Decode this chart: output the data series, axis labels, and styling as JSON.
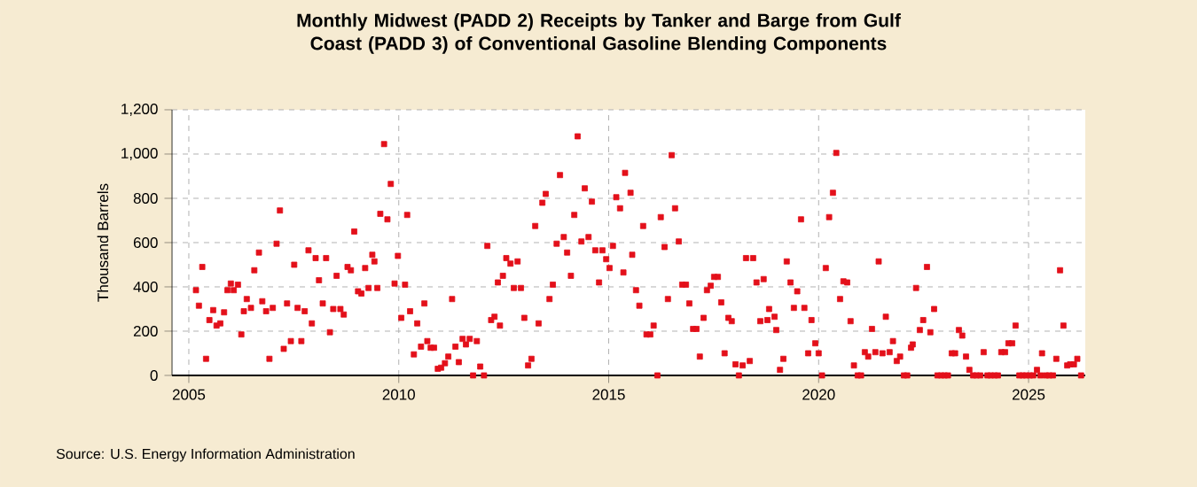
{
  "chart_data": {
    "type": "scatter",
    "title": "Monthly Midwest (PADD 2) Receipts by Tanker and Barge from Gulf Coast (PADD 3) of Conventional Gasoline Blending Components",
    "ylabel": "Thousand Barrels",
    "x": [
      2005.17,
      2005.24,
      2005.32,
      2005.41,
      2005.49,
      2005.58,
      2005.66,
      2005.75,
      2005.84,
      2005.92,
      2006.0,
      2006.07,
      2006.17,
      2006.25,
      2006.31,
      2006.38,
      2006.48,
      2006.56,
      2006.67,
      2006.75,
      2006.84,
      2006.92,
      2007.0,
      2007.09,
      2007.17,
      2007.26,
      2007.34,
      2007.43,
      2007.51,
      2007.59,
      2007.68,
      2007.76,
      2007.85,
      2007.93,
      2008.02,
      2008.1,
      2008.19,
      2008.27,
      2008.36,
      2008.44,
      2008.52,
      2008.61,
      2008.69,
      2008.78,
      2008.86,
      2008.94,
      2009.03,
      2009.11,
      2009.2,
      2009.28,
      2009.37,
      2009.42,
      2009.49,
      2009.56,
      2009.65,
      2009.73,
      2009.81,
      2009.9,
      2009.98,
      2010.06,
      2010.15,
      2010.2,
      2010.27,
      2010.36,
      2010.44,
      2010.53,
      2010.61,
      2010.68,
      2010.76,
      2010.84,
      2010.93,
      2011.01,
      2011.1,
      2011.18,
      2011.27,
      2011.35,
      2011.43,
      2011.52,
      2011.6,
      2011.69,
      2011.77,
      2011.86,
      2011.94,
      2012.03,
      2012.11,
      2012.2,
      2012.28,
      2012.36,
      2012.41,
      2012.48,
      2012.56,
      2012.66,
      2012.74,
      2012.83,
      2012.91,
      2012.99,
      2013.08,
      2013.16,
      2013.25,
      2013.33,
      2013.42,
      2013.5,
      2013.59,
      2013.67,
      2013.76,
      2013.84,
      2013.93,
      2014.01,
      2014.1,
      2014.18,
      2014.26,
      2014.35,
      2014.43,
      2014.52,
      2014.6,
      2014.68,
      2014.77,
      2014.85,
      2014.94,
      2015.02,
      2015.1,
      2015.18,
      2015.27,
      2015.35,
      2015.39,
      2015.52,
      2015.56,
      2015.65,
      2015.73,
      2015.82,
      2015.9,
      2015.99,
      2016.07,
      2016.16,
      2016.24,
      2016.33,
      2016.41,
      2016.5,
      2016.58,
      2016.67,
      2016.75,
      2016.84,
      2016.92,
      2017.01,
      2017.09,
      2017.17,
      2017.26,
      2017.34,
      2017.43,
      2017.51,
      2017.6,
      2017.68,
      2017.76,
      2017.85,
      2017.93,
      2018.02,
      2018.1,
      2018.19,
      2018.27,
      2018.36,
      2018.44,
      2018.52,
      2018.61,
      2018.69,
      2018.78,
      2018.82,
      2018.95,
      2018.99,
      2019.08,
      2019.16,
      2019.24,
      2019.33,
      2019.41,
      2019.49,
      2019.58,
      2019.66,
      2019.75,
      2019.83,
      2019.92,
      2020.0,
      2020.08,
      2020.17,
      2020.25,
      2020.34,
      2020.42,
      2020.51,
      2020.59,
      2020.68,
      2020.76,
      2020.84,
      2020.93,
      2021.01,
      2021.1,
      2021.18,
      2021.27,
      2021.35,
      2021.43,
      2021.52,
      2021.6,
      2021.69,
      2021.77,
      2021.86,
      2021.94,
      2022.03,
      2022.11,
      2022.2,
      2022.24,
      2022.32,
      2022.41,
      2022.49,
      2022.58,
      2022.66,
      2022.75,
      2022.83,
      2022.92,
      2023.0,
      2023.08,
      2023.17,
      2023.25,
      2023.34,
      2023.42,
      2023.51,
      2023.59,
      2023.68,
      2023.76,
      2023.85,
      2023.93,
      2024.02,
      2024.1,
      2024.19,
      2024.27,
      2024.35,
      2024.44,
      2024.52,
      2024.61,
      2024.69,
      2024.78,
      2024.86,
      2024.94,
      2025.03,
      2025.11,
      2025.2,
      2025.28,
      2025.32,
      2025.41,
      2025.49,
      2025.58,
      2025.66,
      2025.75,
      2025.83,
      2025.92,
      2025.99,
      2026.08,
      2026.16,
      2026.25
    ],
    "values": [
      385,
      315,
      490,
      75,
      250,
      295,
      225,
      235,
      285,
      385,
      415,
      385,
      410,
      185,
      290,
      345,
      305,
      475,
      555,
      335,
      290,
      75,
      305,
      595,
      745,
      120,
      325,
      155,
      500,
      305,
      155,
      290,
      565,
      235,
      530,
      430,
      325,
      530,
      195,
      300,
      450,
      300,
      275,
      490,
      475,
      650,
      380,
      370,
      485,
      395,
      545,
      515,
      395,
      730,
      1045,
      705,
      865,
      415,
      540,
      260,
      410,
      725,
      290,
      95,
      235,
      130,
      325,
      155,
      125,
      125,
      30,
      35,
      55,
      85,
      345,
      130,
      60,
      165,
      140,
      165,
      0,
      155,
      40,
      0,
      585,
      250,
      265,
      420,
      225,
      450,
      530,
      505,
      395,
      515,
      395,
      260,
      45,
      75,
      675,
      235,
      780,
      820,
      345,
      410,
      595,
      905,
      625,
      555,
      450,
      725,
      1080,
      605,
      845,
      625,
      785,
      565,
      420,
      565,
      525,
      485,
      585,
      805,
      755,
      465,
      915,
      825,
      545,
      385,
      315,
      675,
      185,
      185,
      225,
      0,
      715,
      580,
      345,
      995,
      755,
      605,
      410,
      410,
      325,
      210,
      210,
      85,
      260,
      385,
      405,
      445,
      445,
      330,
      100,
      260,
      245,
      50,
      0,
      45,
      530,
      65,
      530,
      420,
      245,
      435,
      250,
      300,
      265,
      205,
      25,
      75,
      515,
      420,
      305,
      380,
      705,
      305,
      100,
      250,
      145,
      100,
      0,
      485,
      715,
      825,
      1005,
      345,
      425,
      420,
      245,
      45,
      0,
      0,
      105,
      85,
      210,
      105,
      515,
      100,
      265,
      105,
      155,
      65,
      85,
      0,
      0,
      125,
      140,
      395,
      205,
      250,
      490,
      195,
      300,
      0,
      0,
      0,
      0,
      100,
      100,
      205,
      180,
      85,
      25,
      0,
      0,
      0,
      105,
      0,
      0,
      0,
      0,
      105,
      105,
      145,
      145,
      225,
      0,
      0,
      0,
      0,
      0,
      25,
      0,
      100,
      0,
      0,
      0,
      75,
      475,
      225,
      45,
      50,
      50,
      75,
      0
    ],
    "color": "#e3101a",
    "marker": "square",
    "xlim": [
      2004.6,
      2026.35
    ],
    "ylim": [
      0,
      1200
    ],
    "xticks": [
      2005,
      2010,
      2015,
      2020,
      2025
    ],
    "yticks": [
      0,
      200,
      400,
      600,
      800,
      {
        "value": 1000,
        "label": "1,000"
      },
      {
        "value": 1200,
        "label": "1,200"
      }
    ],
    "grid": true,
    "annotations": [
      "Source: U.S. Energy Information Administration"
    ]
  }
}
